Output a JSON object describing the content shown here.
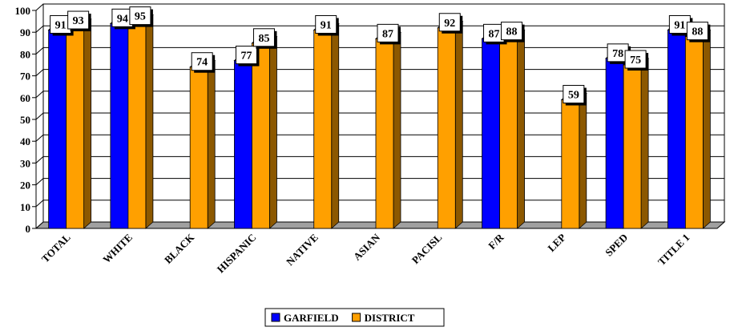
{
  "chart_data": {
    "type": "bar",
    "title": "",
    "xlabel": "",
    "ylabel": "",
    "ylim": [
      0,
      100
    ],
    "yticks": [
      0,
      10,
      20,
      30,
      40,
      50,
      60,
      70,
      80,
      90,
      100
    ],
    "grid": true,
    "three_d": true,
    "categories": [
      "TOTAL",
      "WHITE",
      "BLACK",
      "HISPANIC",
      "NATIVE",
      "ASIAN",
      "PACISL",
      "F/R",
      "LEP",
      "SPED",
      "TITLE 1"
    ],
    "series": [
      {
        "name": "GARFIELD",
        "color": "#0000ff",
        "values": [
          91,
          94,
          null,
          77,
          null,
          null,
          null,
          87,
          null,
          78,
          91
        ]
      },
      {
        "name": "DISTRICT",
        "color": "#ffa000",
        "values": [
          93,
          95,
          74,
          85,
          91,
          87,
          92,
          88,
          59,
          75,
          88
        ]
      }
    ],
    "data_labels": true,
    "legend_position": "bottom"
  }
}
